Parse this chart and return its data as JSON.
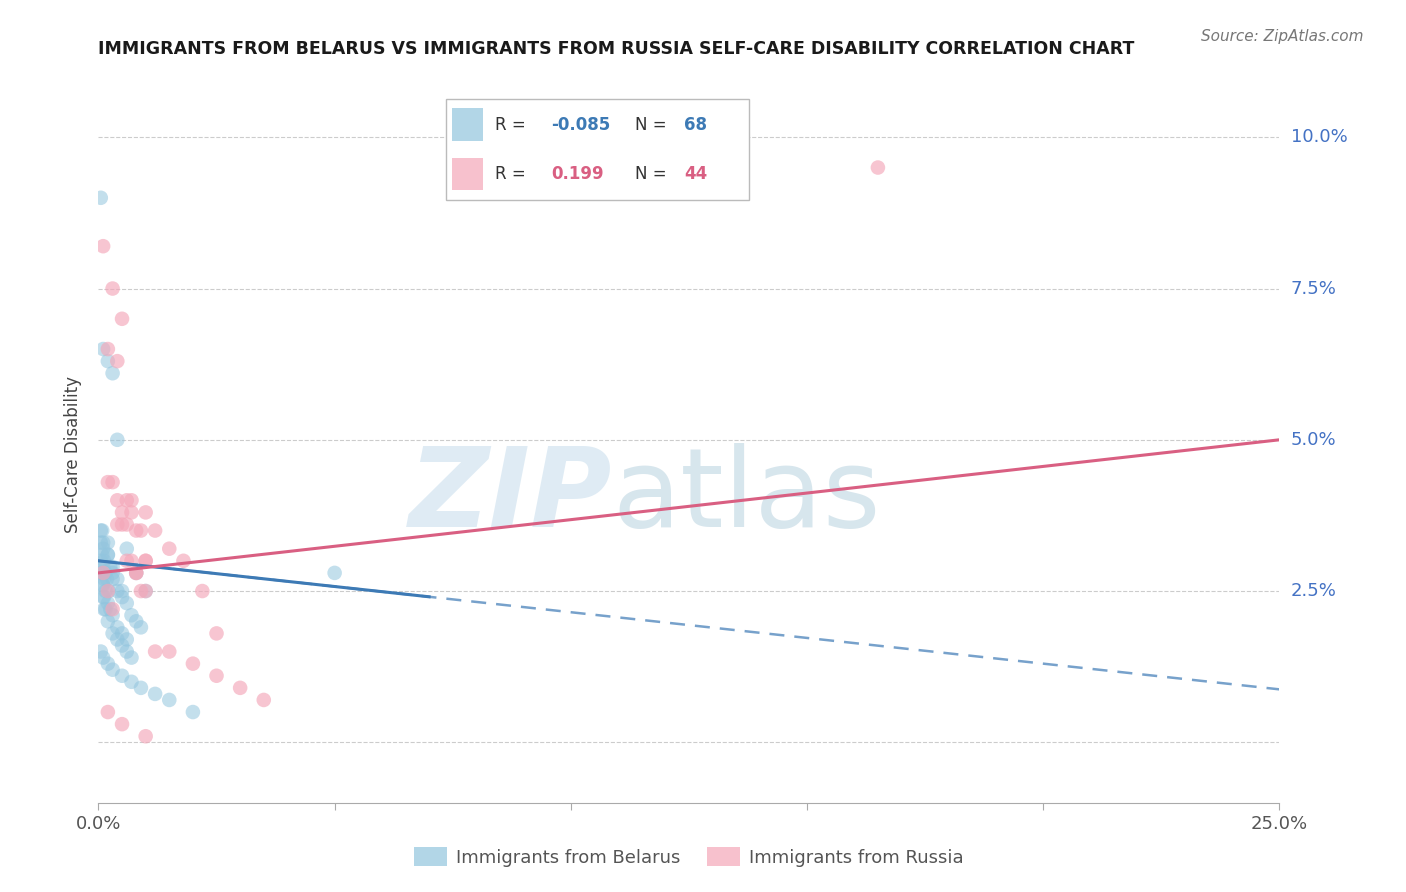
{
  "title": "IMMIGRANTS FROM BELARUS VS IMMIGRANTS FROM RUSSIA SELF-CARE DISABILITY CORRELATION CHART",
  "source": "Source: ZipAtlas.com",
  "ylabel": "Self-Care Disability",
  "legend_belarus": "Immigrants from Belarus",
  "legend_russia": "Immigrants from Russia",
  "R_belarus": -0.085,
  "N_belarus": 68,
  "R_russia": 0.199,
  "N_russia": 44,
  "blue_color": "#92c5de",
  "pink_color": "#f4a7b9",
  "blue_line_color": "#3d7ab5",
  "pink_line_color": "#d95f82",
  "xlim": [
    0.0,
    0.25
  ],
  "ylim": [
    -0.01,
    0.105
  ],
  "yticks": [
    0.0,
    0.025,
    0.05,
    0.075,
    0.1
  ],
  "ytick_labels": [
    "",
    "2.5%",
    "5.0%",
    "7.5%",
    "10.0%"
  ],
  "xticks": [
    0.0,
    0.05,
    0.1,
    0.15,
    0.2,
    0.25
  ],
  "xtick_labels": [
    "0.0%",
    "",
    "",
    "",
    "",
    "25.0%"
  ],
  "bel_x": [
    0.0005,
    0.0008,
    0.001,
    0.0012,
    0.0015,
    0.0018,
    0.002,
    0.0022,
    0.0025,
    0.003,
    0.0005,
    0.0008,
    0.001,
    0.0012,
    0.0015,
    0.002,
    0.0025,
    0.003,
    0.004,
    0.005,
    0.0005,
    0.0008,
    0.001,
    0.0012,
    0.0015,
    0.002,
    0.003,
    0.004,
    0.005,
    0.006,
    0.0005,
    0.0008,
    0.001,
    0.0012,
    0.002,
    0.003,
    0.004,
    0.005,
    0.006,
    0.007,
    0.0005,
    0.001,
    0.002,
    0.003,
    0.004,
    0.005,
    0.006,
    0.007,
    0.008,
    0.009,
    0.0005,
    0.001,
    0.002,
    0.003,
    0.005,
    0.007,
    0.009,
    0.012,
    0.015,
    0.02,
    0.001,
    0.002,
    0.003,
    0.004,
    0.006,
    0.008,
    0.01,
    0.05
  ],
  "bel_y": [
    0.09,
    0.035,
    0.032,
    0.03,
    0.028,
    0.027,
    0.033,
    0.025,
    0.022,
    0.028,
    0.03,
    0.028,
    0.026,
    0.024,
    0.022,
    0.031,
    0.029,
    0.027,
    0.025,
    0.024,
    0.033,
    0.031,
    0.029,
    0.027,
    0.025,
    0.023,
    0.021,
    0.019,
    0.018,
    0.017,
    0.028,
    0.026,
    0.024,
    0.022,
    0.02,
    0.018,
    0.017,
    0.016,
    0.015,
    0.014,
    0.035,
    0.033,
    0.031,
    0.029,
    0.027,
    0.025,
    0.023,
    0.021,
    0.02,
    0.019,
    0.015,
    0.014,
    0.013,
    0.012,
    0.011,
    0.01,
    0.009,
    0.008,
    0.007,
    0.005,
    0.065,
    0.063,
    0.061,
    0.05,
    0.032,
    0.028,
    0.025,
    0.028
  ],
  "rus_x": [
    0.001,
    0.002,
    0.003,
    0.004,
    0.005,
    0.006,
    0.007,
    0.008,
    0.009,
    0.01,
    0.001,
    0.002,
    0.003,
    0.004,
    0.005,
    0.006,
    0.007,
    0.008,
    0.009,
    0.01,
    0.002,
    0.004,
    0.006,
    0.008,
    0.01,
    0.012,
    0.015,
    0.018,
    0.022,
    0.025,
    0.003,
    0.005,
    0.007,
    0.01,
    0.012,
    0.015,
    0.02,
    0.025,
    0.03,
    0.035,
    0.002,
    0.005,
    0.01,
    0.165
  ],
  "rus_y": [
    0.082,
    0.043,
    0.043,
    0.036,
    0.036,
    0.04,
    0.04,
    0.035,
    0.035,
    0.03,
    0.028,
    0.025,
    0.022,
    0.04,
    0.038,
    0.036,
    0.03,
    0.028,
    0.025,
    0.025,
    0.065,
    0.063,
    0.03,
    0.028,
    0.03,
    0.035,
    0.032,
    0.03,
    0.025,
    0.018,
    0.075,
    0.07,
    0.038,
    0.038,
    0.015,
    0.015,
    0.013,
    0.011,
    0.009,
    0.007,
    0.005,
    0.003,
    0.001,
    0.095
  ]
}
